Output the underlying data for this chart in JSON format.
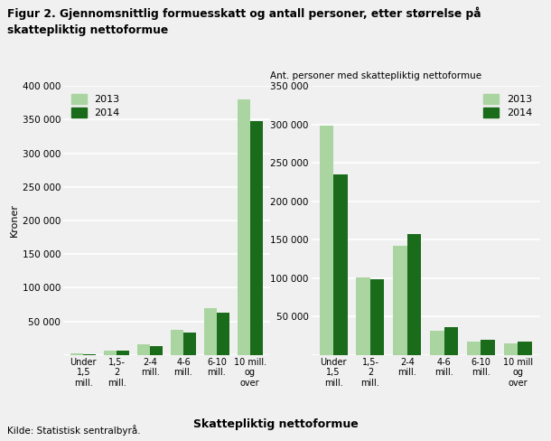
{
  "title_line1": "Figur 2. Gjennomsnittlig formuesskatt og antall personer, etter størrelse på",
  "title_line2": "skattepliktig nettoformue",
  "categories_left": [
    "Under\n1,5\nmill.",
    "1,5-\n2\nmill.",
    "2-4\nmill.",
    "4-6\nmill.",
    "6-10\nmill.",
    "10 mill.\nog\nover"
  ],
  "categories_right": [
    "Under\n1,5\nmill.",
    "1,5-\n2\nmill.",
    "2-4\nmill.",
    "4-6\nmill.",
    "6-10\nmill.",
    "10 mill\nog\nover"
  ],
  "left_ylabel": "Kroner",
  "right_ylabel": "Ant. personer med skattepliktig nettoformue",
  "xlabel": "Skattepliktig nettoformue",
  "left_ylim": [
    0,
    400000
  ],
  "right_ylim": [
    0,
    350000
  ],
  "left_yticks": [
    0,
    50000,
    100000,
    150000,
    200000,
    250000,
    300000,
    350000,
    400000
  ],
  "right_yticks": [
    0,
    50000,
    100000,
    150000,
    200000,
    250000,
    300000,
    350000
  ],
  "left_yticklabels": [
    "",
    "50 000",
    "100 000",
    "150 000",
    "200 000",
    "250 000",
    "300 000",
    "350 000",
    "400 000"
  ],
  "right_yticklabels": [
    "",
    "50 000",
    "100 000",
    "150 000",
    "200 000",
    "250 000",
    "300 000",
    "350 000"
  ],
  "values_2013_left": [
    2000,
    7000,
    16000,
    38000,
    70000,
    380000
  ],
  "values_2014_left": [
    1500,
    6000,
    13000,
    33000,
    63000,
    348000
  ],
  "values_2013_right": [
    298000,
    101000,
    142000,
    31000,
    17000,
    15000
  ],
  "values_2014_right": [
    235000,
    98000,
    157000,
    36000,
    20000,
    18000
  ],
  "color_2013": "#aad4a0",
  "color_2014": "#1a6b1a",
  "legend_labels": [
    "2013",
    "2014"
  ],
  "source_text": "Kilde: Statistisk sentralbyrå.",
  "background_color": "#f0f0f0",
  "grid_color": "#ffffff"
}
